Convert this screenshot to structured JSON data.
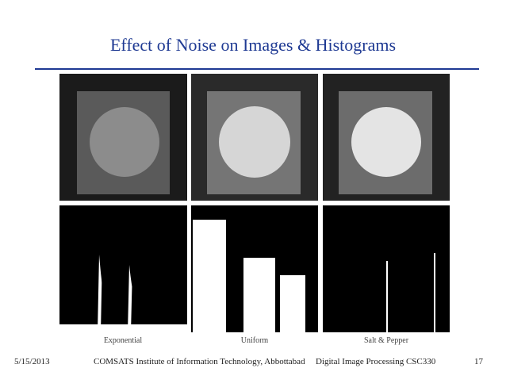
{
  "slide": {
    "title": "Effect of Noise on Images & Histograms",
    "figure": {
      "captions": [
        "Exponential",
        "Uniform",
        "Salt & Pepper"
      ]
    },
    "footer": {
      "date": "5/15/2013",
      "institute": "COMSATS Institute of Information Technology, Abbottabad",
      "course": "Digital Image Processing CSC330",
      "page": "17"
    }
  }
}
